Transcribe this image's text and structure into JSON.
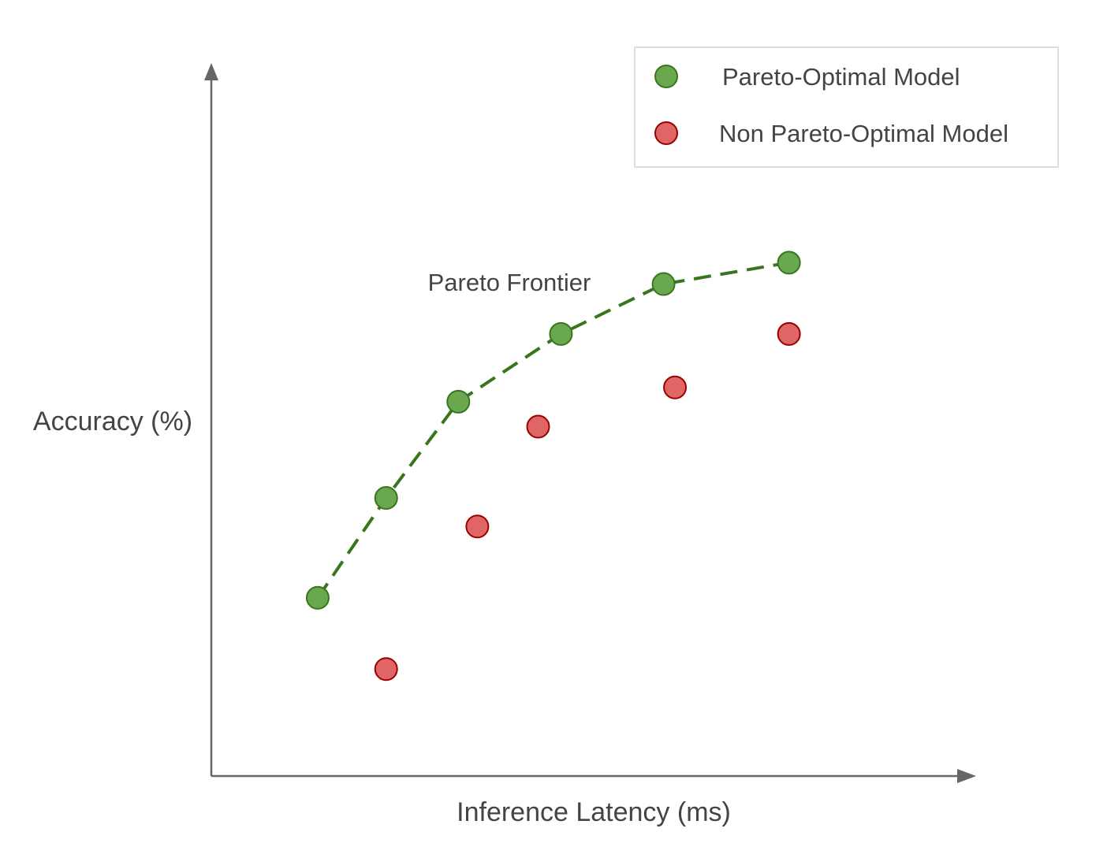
{
  "chart_data": {
    "type": "scatter",
    "title": "",
    "xlabel": "Inference Latency (ms)",
    "ylabel": "Accuracy (%)",
    "xlim": [
      0,
      100
    ],
    "ylim": [
      0,
      100
    ],
    "grid": false,
    "tick_labels": false,
    "legend_position": "top-right",
    "annotation": "Pareto Frontier",
    "series": [
      {
        "name": "Pareto-Optimal Model",
        "color": "#6aa84f",
        "stroke": "#38761d",
        "connected": true,
        "line_style": "dashed",
        "points": [
          [
            14,
            25
          ],
          [
            23,
            39
          ],
          [
            32.5,
            52.5
          ],
          [
            46,
            62
          ],
          [
            59.5,
            69
          ],
          [
            76,
            72
          ]
        ]
      },
      {
        "name": "Non Pareto-Optimal Model",
        "color": "#e06666",
        "stroke": "#990000",
        "connected": false,
        "points": [
          [
            23,
            15
          ],
          [
            35,
            35
          ],
          [
            43,
            49
          ],
          [
            61,
            54.5
          ],
          [
            76,
            62
          ]
        ]
      }
    ]
  }
}
